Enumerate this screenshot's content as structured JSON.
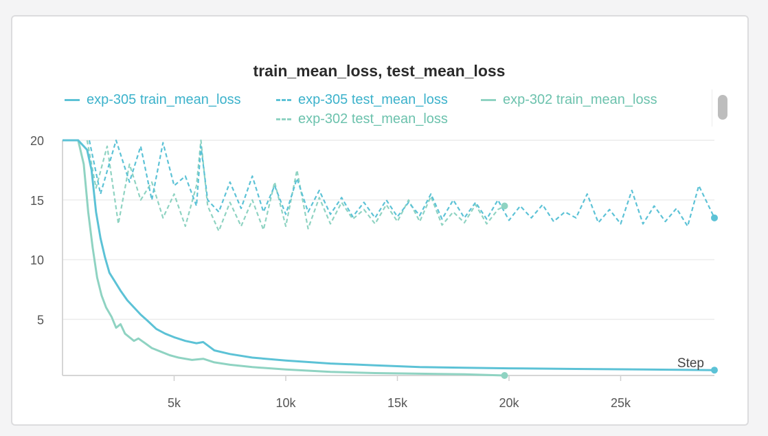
{
  "chart_data": {
    "type": "line",
    "title": "train_mean_loss, test_mean_loss",
    "xlabel": "Step",
    "ylabel": "",
    "xlim": [
      0,
      29200
    ],
    "ylim": [
      0.3,
      20
    ],
    "x_ticks": [
      5000,
      10000,
      15000,
      20000,
      25000
    ],
    "x_tick_labels": [
      "5k",
      "10k",
      "15k",
      "20k",
      "25k"
    ],
    "y_ticks": [
      5,
      10,
      15,
      20
    ],
    "y_tick_labels": [
      "5",
      "10",
      "15",
      "20"
    ],
    "grid": true,
    "legend_position": "top",
    "series": [
      {
        "name": "exp-305 train_mean_loss",
        "color": "#5cc2d6",
        "dash": "solid",
        "x": [
          0,
          700,
          1100,
          1300,
          1500,
          1700,
          1900,
          2100,
          2300,
          2600,
          2900,
          3200,
          3500,
          3800,
          4200,
          4600,
          5000,
          5500,
          6000,
          6300,
          6800,
          7500,
          8500,
          10000,
          12000,
          14000,
          16000,
          18000,
          20000,
          23000,
          26000,
          29200
        ],
        "y": [
          20,
          20,
          19.2,
          17.5,
          14.0,
          11.8,
          10.2,
          8.9,
          8.3,
          7.4,
          6.6,
          6.0,
          5.4,
          4.9,
          4.2,
          3.8,
          3.5,
          3.2,
          3.0,
          3.1,
          2.4,
          2.1,
          1.8,
          1.55,
          1.3,
          1.15,
          1.0,
          0.95,
          0.9,
          0.85,
          0.8,
          0.75
        ],
        "end_value": 0.75
      },
      {
        "name": "exp-305 test_mean_loss",
        "color": "#5cc2d6",
        "dash": "dashed",
        "x": [
          1200,
          1700,
          2400,
          3000,
          3500,
          4000,
          4500,
          5000,
          5500,
          6000,
          6200,
          6500,
          7000,
          7500,
          8000,
          8500,
          9000,
          9500,
          10000,
          10500,
          11000,
          11500,
          12000,
          12500,
          13000,
          13500,
          14000,
          14500,
          15000,
          15500,
          16000,
          16500,
          17000,
          17500,
          18000,
          18500,
          19000,
          19500,
          20000,
          20500,
          21000,
          21500,
          22000,
          22500,
          23000,
          23500,
          24000,
          24500,
          25000,
          25500,
          26000,
          26500,
          27000,
          27500,
          28000,
          28500,
          29200
        ],
        "y": [
          20,
          15.5,
          20,
          16.5,
          19.5,
          15.0,
          19.8,
          16.2,
          17.0,
          14.5,
          19.5,
          15.0,
          14.0,
          16.5,
          14.3,
          17.0,
          14.0,
          16.2,
          13.8,
          16.8,
          14.0,
          15.8,
          13.8,
          15.2,
          13.6,
          14.8,
          13.5,
          15.0,
          13.6,
          14.8,
          13.7,
          15.5,
          13.4,
          15.0,
          13.5,
          14.8,
          13.4,
          15.0,
          13.3,
          14.5,
          13.5,
          14.6,
          13.2,
          14.0,
          13.5,
          15.5,
          13.1,
          14.2,
          13.0,
          15.8,
          13.0,
          14.5,
          13.2,
          14.3,
          12.8,
          16.2,
          13.5
        ],
        "end_value": 13.5
      },
      {
        "name": "exp-302 train_mean_loss",
        "color": "#8fd3c2",
        "dash": "solid",
        "x": [
          0,
          700,
          950,
          1150,
          1350,
          1550,
          1750,
          1950,
          2200,
          2400,
          2600,
          2800,
          3000,
          3200,
          3400,
          3700,
          4000,
          4400,
          4800,
          5200,
          5800,
          6300,
          6800,
          7500,
          8500,
          10000,
          12000,
          14000,
          16000,
          18000,
          19800
        ],
        "y": [
          20,
          20,
          18.0,
          14.0,
          11.0,
          8.5,
          7.0,
          6.0,
          5.2,
          4.3,
          4.6,
          3.8,
          3.5,
          3.2,
          3.4,
          3.0,
          2.6,
          2.3,
          2.0,
          1.8,
          1.6,
          1.7,
          1.4,
          1.2,
          1.0,
          0.8,
          0.6,
          0.5,
          0.45,
          0.4,
          0.3
        ],
        "end_value": 0.3
      },
      {
        "name": "exp-302 test_mean_loss",
        "color": "#8fd3c2",
        "dash": "dashed",
        "x": [
          1100,
          1500,
          2000,
          2500,
          3000,
          3500,
          4000,
          4500,
          5000,
          5500,
          6000,
          6200,
          6500,
          7000,
          7500,
          8000,
          8500,
          9000,
          9500,
          10000,
          10500,
          11000,
          11500,
          12000,
          12500,
          13000,
          13500,
          14000,
          14500,
          15000,
          15500,
          16000,
          16500,
          17000,
          17500,
          18000,
          18500,
          19000,
          19500,
          19800
        ],
        "y": [
          20,
          16.0,
          19.5,
          13.0,
          18.0,
          15.0,
          16.5,
          13.5,
          15.5,
          12.8,
          16.2,
          20.0,
          14.5,
          12.4,
          14.8,
          12.8,
          15.0,
          12.5,
          16.5,
          12.8,
          17.5,
          12.6,
          15.2,
          13.0,
          14.8,
          13.4,
          14.2,
          13.0,
          14.6,
          13.2,
          15.0,
          13.2,
          15.3,
          12.9,
          14.0,
          13.1,
          14.6,
          13.0,
          14.2,
          14.5
        ],
        "end_value": 14.5
      }
    ]
  }
}
